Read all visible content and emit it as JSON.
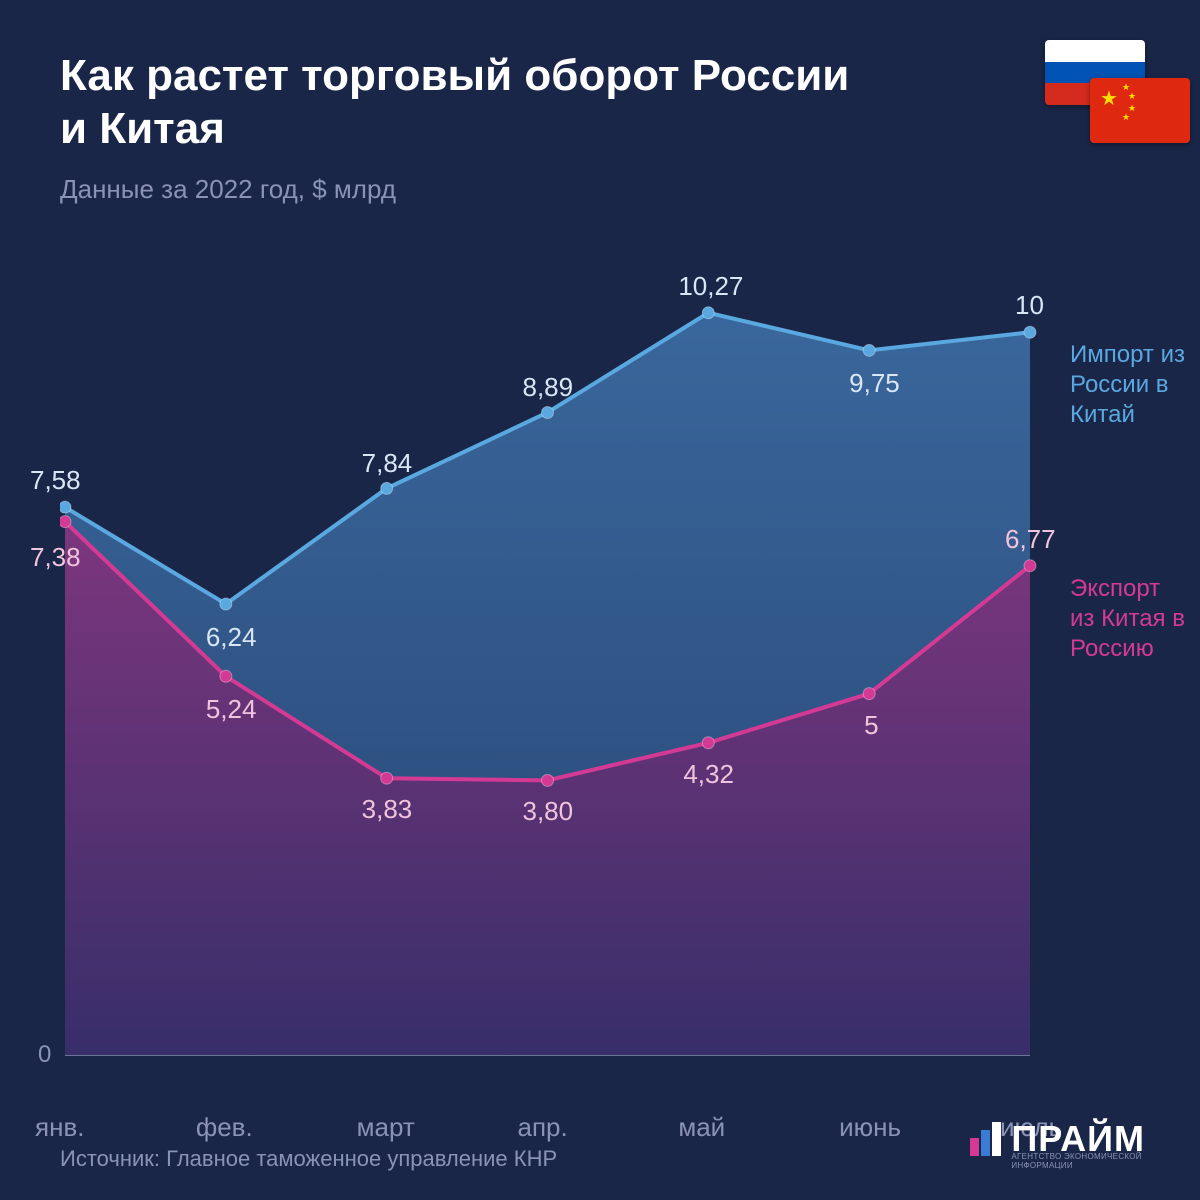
{
  "title": "Как растет торговый оборот России и Китая",
  "subtitle": "Данные за 2022 год, $ млрд",
  "source": "Источник: Главное таможенное управление КНР",
  "brand_name": "ПРАЙМ",
  "brand_sub": "АГЕНТСТВО ЭКОНОМИЧЕСКОЙ ИНФОРМАЦИИ",
  "chart": {
    "type": "area",
    "background_color": "#1a2648",
    "text_muted_color": "#8a93b5",
    "ymin": 0,
    "ymax": 11,
    "y_zero_label": "0",
    "categories": [
      "янв.",
      "фев.",
      "март",
      "апр.",
      "май",
      "июнь",
      "июль"
    ],
    "series": {
      "import": {
        "label": "Импорт из России в Китай",
        "color": "#5aa8e0",
        "fill_top": "#3f72ab",
        "fill_bottom": "#2a4a7a",
        "values": [
          7.58,
          6.24,
          7.84,
          8.89,
          10.27,
          9.75,
          10
        ],
        "value_labels": [
          "7,58",
          "6,24",
          "7,84",
          "8,89",
          "10,27",
          "9,75",
          "10"
        ]
      },
      "export": {
        "label": "Экспорт из Китая в Россию",
        "color": "#d43a94",
        "fill_top": "#8a2f7a",
        "fill_bottom": "#3a2a68",
        "values": [
          7.38,
          5.24,
          3.83,
          3.8,
          4.32,
          5,
          6.77
        ],
        "value_labels": [
          "7,38",
          "5,24",
          "3,83",
          "3,80",
          "4,32",
          "5",
          "6,77"
        ]
      }
    },
    "line_width": 4,
    "marker_radius": 6,
    "label_fontsize": 26,
    "axis_color": "#6a7499"
  },
  "flags": {
    "russia": {
      "stripes": [
        "#ffffff",
        "#0052b4",
        "#d52b1e"
      ]
    },
    "china": {
      "bg": "#de2910",
      "star": "#ffde00"
    }
  }
}
